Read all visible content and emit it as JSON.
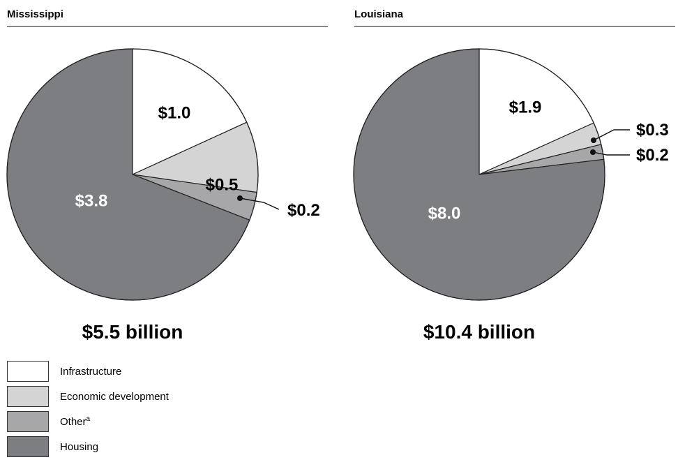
{
  "chart_data": [
    {
      "type": "pie",
      "title": "Mississippi",
      "total_label": "$5.5 billion",
      "slices": [
        {
          "category": "Infrastructure",
          "value": 1.0,
          "label": "$1.0"
        },
        {
          "category": "Economic development",
          "value": 0.5,
          "label": "$0.5"
        },
        {
          "category": "Other",
          "value": 0.2,
          "label": "$0.2"
        },
        {
          "category": "Housing",
          "value": 3.8,
          "label": "$3.8"
        }
      ]
    },
    {
      "type": "pie",
      "title": "Louisiana",
      "total_label": "$10.4 billion",
      "slices": [
        {
          "category": "Infrastructure",
          "value": 1.9,
          "label": "$1.9"
        },
        {
          "category": "Economic development",
          "value": 0.3,
          "label": "$0.3"
        },
        {
          "category": "Other",
          "value": 0.2,
          "label": "$0.2"
        },
        {
          "category": "Housing",
          "value": 8.0,
          "label": "$8.0"
        }
      ]
    }
  ],
  "legend": [
    {
      "label": "Infrastructure",
      "sup": "",
      "color": "#ffffff"
    },
    {
      "label": "Economic development",
      "sup": "",
      "color": "#d4d4d4"
    },
    {
      "label": "Other",
      "sup": "a",
      "color": "#a7a7a9"
    },
    {
      "label": "Housing",
      "sup": "",
      "color": "#7d7e81"
    }
  ]
}
